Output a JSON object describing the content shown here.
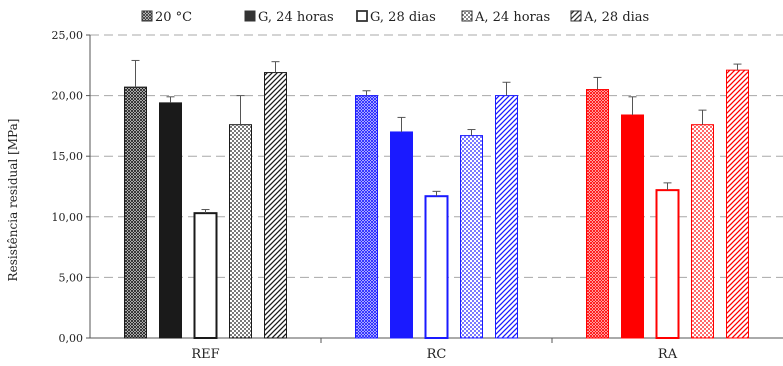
{
  "chart_data": {
    "type": "bar",
    "ylabel": "Resistência residual [MPa]",
    "xlabel": "",
    "ylim": [
      0,
      25
    ],
    "yticks": [
      "0,00",
      "5,00",
      "10,00",
      "15,00",
      "20,00",
      "25,00"
    ],
    "ytick_values": [
      0,
      5,
      10,
      15,
      20,
      25
    ],
    "grid": "horizontal dashed",
    "legend_position": "top",
    "categories": [
      "REF",
      "RC",
      "RA"
    ],
    "category_colors": [
      "#1a1a1a",
      "#1a1aff",
      "#ff0000"
    ],
    "series": [
      {
        "name": "20 °C",
        "pattern": "fine-crosshatch",
        "values": [
          20.7,
          20.0,
          20.5
        ],
        "errors": [
          2.2,
          0.4,
          1.0
        ]
      },
      {
        "name": "G, 24 horas",
        "pattern": "solid",
        "values": [
          19.4,
          17.0,
          18.4
        ],
        "errors": [
          0.5,
          1.2,
          1.5
        ]
      },
      {
        "name": "G, 28 dias",
        "pattern": "hollow",
        "values": [
          10.3,
          11.7,
          12.2
        ],
        "errors": [
          0.3,
          0.4,
          0.6
        ]
      },
      {
        "name": "A, 24 horas",
        "pattern": "dots",
        "values": [
          17.6,
          16.7,
          17.6
        ],
        "errors": [
          2.4,
          0.5,
          1.2
        ]
      },
      {
        "name": "A, 28 dias",
        "pattern": "diagonal",
        "values": [
          21.9,
          20.0,
          22.1
        ],
        "errors": [
          0.9,
          1.1,
          0.5
        ]
      }
    ]
  }
}
